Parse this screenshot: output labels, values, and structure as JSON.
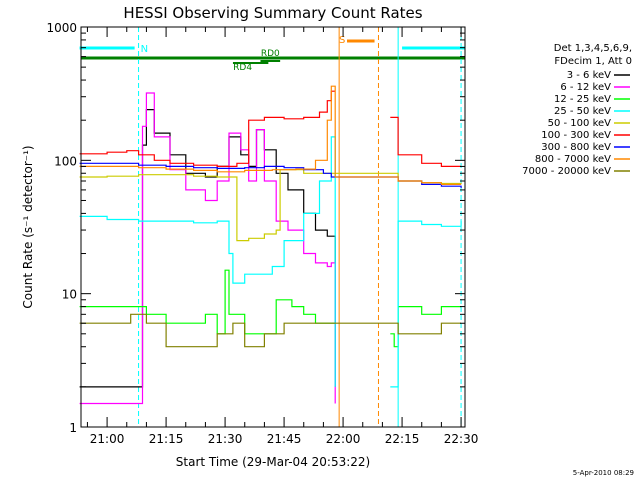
{
  "chart_data": {
    "type": "line",
    "title": "HESSI Observing Summary Count Rates",
    "xlabel": "Start Time (29-Mar-04 20:53:22)",
    "ylabel": "Count Rate (s⁻¹ detector⁻¹)",
    "y_scale": "log",
    "ylim": [
      1,
      1000
    ],
    "xlim": [
      "20:53:22",
      "22:31:00"
    ],
    "x_ticks": [
      "21:00",
      "21:15",
      "21:30",
      "21:45",
      "22:00",
      "22:15",
      "22:30"
    ],
    "y_ticks": [
      "1",
      "10",
      "100",
      "1000"
    ],
    "grid": false,
    "legend_position": "right",
    "legend_header": [
      "Det 1,3,4,5,6,9,",
      "FDecim 1, Att 0"
    ],
    "footer_date": "5-Apr-2010 08:29",
    "flag_labels": {
      "night": "N",
      "saa": "S",
      "rd0": "RD0",
      "rd4": "RD4"
    },
    "series": [
      {
        "name": "3 - 6 keV",
        "color": "#000000",
        "points": [
          [
            "20:53",
            2
          ],
          [
            "21:07",
            2
          ],
          [
            "21:09",
            130
          ],
          [
            "21:10",
            240
          ],
          [
            "21:12",
            160
          ],
          [
            "21:16",
            110
          ],
          [
            "21:20",
            80
          ],
          [
            "21:25",
            75
          ],
          [
            "21:28",
            90
          ],
          [
            "21:31",
            150
          ],
          [
            "21:34",
            110
          ],
          [
            "21:36",
            90
          ],
          [
            "21:38",
            170
          ],
          [
            "21:40",
            120
          ],
          [
            "21:43",
            80
          ],
          [
            "21:46",
            60
          ],
          [
            "21:50",
            40
          ],
          [
            "21:53",
            30
          ],
          [
            "21:56",
            27
          ],
          [
            "21:57",
            27
          ],
          [
            "21:58",
            2
          ]
        ]
      },
      {
        "name": "6 - 12 keV",
        "color": "#ff00ff",
        "points": [
          [
            "20:53",
            1.5
          ],
          [
            "21:08",
            1.5
          ],
          [
            "21:09",
            180
          ],
          [
            "21:10",
            320
          ],
          [
            "21:12",
            150
          ],
          [
            "21:16",
            85
          ],
          [
            "21:20",
            60
          ],
          [
            "21:25",
            50
          ],
          [
            "21:28",
            70
          ],
          [
            "21:31",
            160
          ],
          [
            "21:34",
            120
          ],
          [
            "21:36",
            70
          ],
          [
            "21:38",
            170
          ],
          [
            "21:40",
            70
          ],
          [
            "21:43",
            35
          ],
          [
            "21:46",
            30
          ],
          [
            "21:50",
            20
          ],
          [
            "21:53",
            17
          ],
          [
            "21:56",
            16
          ],
          [
            "21:57",
            17
          ],
          [
            "21:58",
            1.5
          ]
        ]
      },
      {
        "name": "12 - 25 keV",
        "color": "#00ff00",
        "points": [
          [
            "20:53",
            8
          ],
          [
            "21:08",
            8
          ],
          [
            "21:10",
            7
          ],
          [
            "21:15",
            6
          ],
          [
            "21:20",
            6
          ],
          [
            "21:25",
            7
          ],
          [
            "21:28",
            5
          ],
          [
            "21:30",
            15
          ],
          [
            "21:31",
            7
          ],
          [
            "21:35",
            5
          ],
          [
            "21:38",
            5
          ],
          [
            "21:41",
            5
          ],
          [
            "21:43",
            9
          ],
          [
            "21:47",
            8
          ],
          [
            "21:50",
            7
          ],
          [
            "21:53",
            6
          ],
          [
            "21:57",
            6
          ],
          [
            "21:58",
            6
          ],
          [
            "22:12",
            5
          ],
          [
            "22:13",
            4
          ],
          [
            "22:14",
            8
          ],
          [
            "22:20",
            7
          ],
          [
            "22:25",
            8
          ],
          [
            "22:30",
            8
          ]
        ]
      },
      {
        "name": "25 - 50 keV",
        "color": "#00ffff",
        "points": [
          [
            "20:53",
            38
          ],
          [
            "21:00",
            36
          ],
          [
            "21:08",
            35
          ],
          [
            "21:15",
            35
          ],
          [
            "21:22",
            34
          ],
          [
            "21:28",
            35
          ],
          [
            "21:31",
            20
          ],
          [
            "21:32",
            12
          ],
          [
            "21:35",
            14
          ],
          [
            "21:38",
            14
          ],
          [
            "21:42",
            16
          ],
          [
            "21:45",
            25
          ],
          [
            "21:50",
            40
          ],
          [
            "21:54",
            70
          ],
          [
            "21:57",
            150
          ],
          [
            "21:58",
            2
          ],
          [
            "22:12",
            2
          ],
          [
            "22:14",
            35
          ],
          [
            "22:20",
            33
          ],
          [
            "22:25",
            32
          ],
          [
            "22:30",
            35
          ]
        ]
      },
      {
        "name": "50 - 100 keV",
        "color": "#cccc00",
        "points": [
          [
            "20:53",
            75
          ],
          [
            "21:00",
            76
          ],
          [
            "21:08",
            78
          ],
          [
            "21:15",
            78
          ],
          [
            "21:22",
            76
          ],
          [
            "21:28",
            75
          ],
          [
            "21:32",
            75
          ],
          [
            "21:33",
            25
          ],
          [
            "21:36",
            26
          ],
          [
            "21:40",
            28
          ],
          [
            "21:43",
            30
          ],
          [
            "21:44",
            85
          ],
          [
            "21:50",
            80
          ],
          [
            "21:57",
            80
          ],
          [
            "21:58",
            80
          ],
          [
            "22:14",
            70
          ],
          [
            "22:20",
            68
          ],
          [
            "22:25",
            67
          ],
          [
            "22:30",
            68
          ]
        ]
      },
      {
        "name": "100 - 300 keV",
        "color": "#ff0000",
        "points": [
          [
            "20:53",
            112
          ],
          [
            "21:00",
            115
          ],
          [
            "21:05",
            118
          ],
          [
            "21:08",
            110
          ],
          [
            "21:12",
            100
          ],
          [
            "21:16",
            95
          ],
          [
            "21:22",
            92
          ],
          [
            "21:28",
            90
          ],
          [
            "21:33",
            95
          ],
          [
            "21:36",
            200
          ],
          [
            "21:40",
            210
          ],
          [
            "21:45",
            205
          ],
          [
            "21:50",
            210
          ],
          [
            "21:54",
            230
          ],
          [
            "21:56",
            280
          ],
          [
            "21:57",
            330
          ],
          [
            "21:58",
            330
          ],
          [
            "22:12",
            210
          ],
          [
            "22:14",
            110
          ],
          [
            "22:20",
            95
          ],
          [
            "22:25",
            90
          ],
          [
            "22:30",
            90
          ]
        ]
      },
      {
        "name": "300 - 800 keV",
        "color": "#0000ff",
        "points": [
          [
            "20:53",
            95
          ],
          [
            "21:00",
            95
          ],
          [
            "21:08",
            92
          ],
          [
            "21:15",
            90
          ],
          [
            "21:22",
            88
          ],
          [
            "21:28",
            87
          ],
          [
            "21:35",
            88
          ],
          [
            "21:40",
            90
          ],
          [
            "21:45",
            88
          ],
          [
            "21:50",
            85
          ],
          [
            "21:55",
            80
          ],
          [
            "21:57",
            75
          ],
          [
            "21:58",
            75
          ],
          [
            "22:14",
            70
          ],
          [
            "22:20",
            66
          ],
          [
            "22:25",
            64
          ],
          [
            "22:30",
            62
          ]
        ]
      },
      {
        "name": "800 - 7000 keV",
        "color": "#ff8800",
        "points": [
          [
            "20:53",
            90
          ],
          [
            "21:00",
            90
          ],
          [
            "21:08",
            88
          ],
          [
            "21:15",
            86
          ],
          [
            "21:22",
            84
          ],
          [
            "21:28",
            82
          ],
          [
            "21:35",
            84
          ],
          [
            "21:42",
            85
          ],
          [
            "21:48",
            86
          ],
          [
            "21:53",
            100
          ],
          [
            "21:56",
            200
          ],
          [
            "21:57",
            360
          ],
          [
            "21:58",
            75
          ],
          [
            "22:14",
            70
          ],
          [
            "22:20",
            68
          ],
          [
            "22:25",
            66
          ],
          [
            "22:30",
            66
          ]
        ]
      },
      {
        "name": "7000 - 20000 keV",
        "color": "#808000",
        "points": [
          [
            "20:53",
            6
          ],
          [
            "21:00",
            6
          ],
          [
            "21:06",
            7
          ],
          [
            "21:10",
            6
          ],
          [
            "21:15",
            4
          ],
          [
            "21:20",
            4
          ],
          [
            "21:25",
            4
          ],
          [
            "21:28",
            5
          ],
          [
            "21:32",
            6
          ],
          [
            "21:35",
            4
          ],
          [
            "21:40",
            5
          ],
          [
            "21:45",
            6
          ],
          [
            "21:50",
            6
          ],
          [
            "21:55",
            6
          ],
          [
            "21:57",
            6
          ],
          [
            "22:14",
            5
          ],
          [
            "22:20",
            5
          ],
          [
            "22:25",
            6
          ],
          [
            "22:30",
            6
          ]
        ]
      }
    ],
    "annotations": {
      "night_segments": [
        [
          "20:53",
          "21:07"
        ],
        [
          "22:15",
          "22:31"
        ]
      ],
      "saa_segment": [
        "22:01",
        "22:08"
      ],
      "rd0_segment": [
        "21:39",
        "21:44"
      ],
      "rd4_segment": [
        "21:32",
        "21:41"
      ],
      "dashed_verticals": [
        {
          "x": "21:08",
          "color": "#00ffff"
        },
        {
          "x": "22:09",
          "color": "#ff8800"
        },
        {
          "x": "22:30",
          "color": "#00ffff"
        }
      ],
      "solid_verticals": [
        {
          "x": "21:59",
          "color": "#ff8800"
        },
        {
          "x": "22:14",
          "color": "#00ffff"
        }
      ]
    }
  }
}
